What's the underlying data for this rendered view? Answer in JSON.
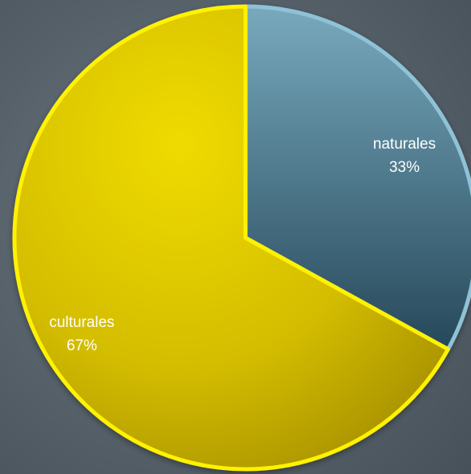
{
  "chart_data": {
    "type": "pie",
    "slices": [
      {
        "label": "naturales",
        "value": 33,
        "value_label": "33%",
        "color": "#4d7f91"
      },
      {
        "label": "culturales",
        "value": 67,
        "value_label": "67%",
        "color": "#d8c500"
      }
    ],
    "start_angle_deg": 0,
    "direction": "clockwise",
    "legend": "none",
    "labels": "inside-slices"
  },
  "colors": {
    "background": "#56616a",
    "naturales_edge": "#8fc2d6",
    "culturales_edge": "#fff200"
  }
}
